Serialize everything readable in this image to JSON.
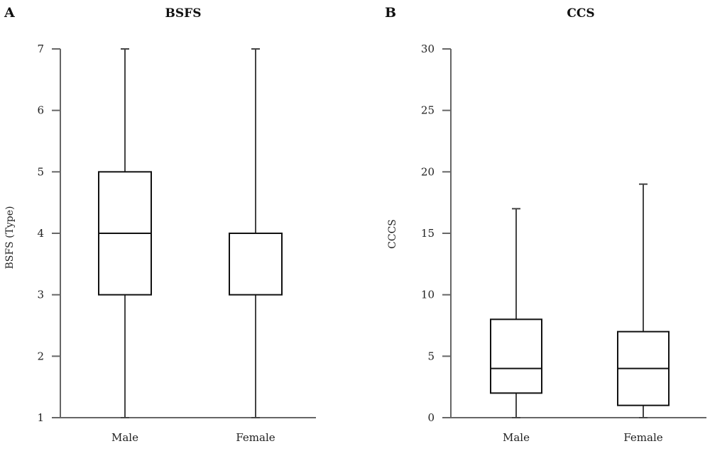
{
  "chart_data": [
    {
      "type": "box",
      "panel_letter": "A",
      "title": "BSFS",
      "xlabel": "",
      "ylabel": "BSFS (Type)",
      "ylim": [
        1,
        7
      ],
      "yticks": [
        1,
        2,
        3,
        4,
        5,
        6,
        7
      ],
      "categories": [
        "Male",
        "Female"
      ],
      "boxes": [
        {
          "category": "Male",
          "min": 1,
          "q1": 3,
          "median": 4,
          "q3": 5,
          "max": 7
        },
        {
          "category": "Female",
          "min": 1,
          "q1": 3,
          "median": 4,
          "q3": 4,
          "max": 7
        }
      ],
      "grid": false
    },
    {
      "type": "box",
      "panel_letter": "B",
      "title": "CCS",
      "xlabel": "",
      "ylabel": "CCCS",
      "ylim": [
        0,
        30
      ],
      "yticks": [
        0,
        5,
        10,
        15,
        20,
        25,
        30
      ],
      "categories": [
        "Male",
        "Female"
      ],
      "boxes": [
        {
          "category": "Male",
          "min": 0,
          "q1": 2,
          "median": 4,
          "q3": 8,
          "max": 17
        },
        {
          "category": "Female",
          "min": 0,
          "q1": 1,
          "median": 4,
          "q3": 7,
          "max": 19
        }
      ],
      "grid": false
    }
  ]
}
